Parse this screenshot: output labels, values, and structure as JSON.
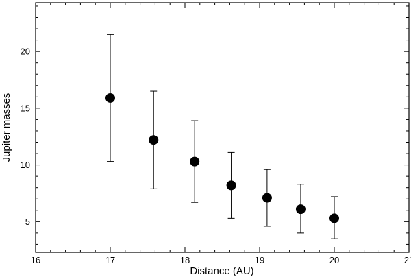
{
  "chart_data": {
    "type": "scatter",
    "xlabel": "Distance (AU)",
    "ylabel": "Jupiter masses",
    "xlim": [
      16,
      21
    ],
    "ylim": [
      2.3,
      24.3
    ],
    "x_ticks": [
      "16",
      "17",
      "18",
      "19",
      "20",
      "21"
    ],
    "y_ticks": [
      "5",
      "10",
      "15",
      "20"
    ],
    "grid": false,
    "marker_color": "#000000",
    "points": [
      {
        "x": 17.0,
        "y": 15.9,
        "err_low": 10.3,
        "err_high": 21.5
      },
      {
        "x": 17.58,
        "y": 12.2,
        "err_low": 7.9,
        "err_high": 16.5
      },
      {
        "x": 18.13,
        "y": 10.3,
        "err_low": 6.7,
        "err_high": 13.9
      },
      {
        "x": 18.62,
        "y": 8.2,
        "err_low": 5.3,
        "err_high": 11.1
      },
      {
        "x": 19.1,
        "y": 7.1,
        "err_low": 4.6,
        "err_high": 9.6
      },
      {
        "x": 19.55,
        "y": 6.1,
        "err_low": 4.0,
        "err_high": 8.3
      },
      {
        "x": 20.0,
        "y": 5.3,
        "err_low": 3.5,
        "err_high": 7.2
      }
    ]
  }
}
